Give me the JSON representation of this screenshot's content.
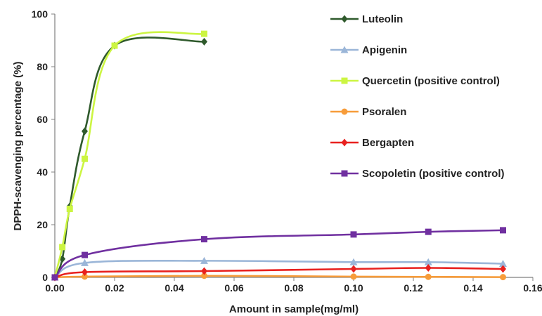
{
  "chart_data": {
    "type": "line",
    "title": "",
    "xlabel": "Amount in sample(mg/ml)",
    "ylabel": "DPPH-scavenging percentage (%)",
    "xlim": [
      0,
      0.16
    ],
    "ylim": [
      0,
      100
    ],
    "x_ticks": [
      "0.00",
      "0.02",
      "0.04",
      "0.06",
      "0.08",
      "0.10",
      "0.12",
      "0.14",
      "0.16"
    ],
    "y_ticks": [
      "0",
      "20",
      "40",
      "60",
      "80",
      "100"
    ],
    "grid": false,
    "legend_position": "right",
    "smooth": true,
    "series": [
      {
        "name": "Luteolin",
        "color": "#2f5a2c",
        "marker": "diamond",
        "x": [
          0,
          0.0025,
          0.005,
          0.01,
          0.02,
          0.05
        ],
        "y": [
          0,
          7,
          27,
          55.5,
          88,
          89.5
        ]
      },
      {
        "name": "Apigenin",
        "color": "#9bb6d8",
        "marker": "triangle",
        "x": [
          0,
          0.01,
          0.05,
          0.1,
          0.125,
          0.15
        ],
        "y": [
          0,
          5.5,
          6.3,
          5.8,
          5.8,
          5.2
        ]
      },
      {
        "name": "Quercetin (positive control)",
        "color": "#ccf542",
        "marker": "square",
        "x": [
          0,
          0.0025,
          0.005,
          0.01,
          0.02,
          0.05
        ],
        "y": [
          0,
          11.5,
          26,
          45,
          88,
          92.5
        ]
      },
      {
        "name": "Psoralen",
        "color": "#f79c3a",
        "marker": "circle",
        "x": [
          0,
          0.01,
          0.05,
          0.1,
          0.125,
          0.15
        ],
        "y": [
          0,
          0.3,
          0.6,
          0.3,
          0.2,
          0.1
        ]
      },
      {
        "name": "Bergapten",
        "color": "#e8211f",
        "marker": "diamond",
        "x": [
          0,
          0.01,
          0.05,
          0.1,
          0.125,
          0.15
        ],
        "y": [
          0,
          2,
          2.4,
          3.2,
          3.6,
          3.2
        ]
      },
      {
        "name": "Scopoletin (positive control)",
        "color": "#7030a0",
        "marker": "square",
        "x": [
          0,
          0.01,
          0.05,
          0.1,
          0.125,
          0.15
        ],
        "y": [
          0,
          8.5,
          14.5,
          16.3,
          17.3,
          17.9
        ]
      }
    ]
  }
}
